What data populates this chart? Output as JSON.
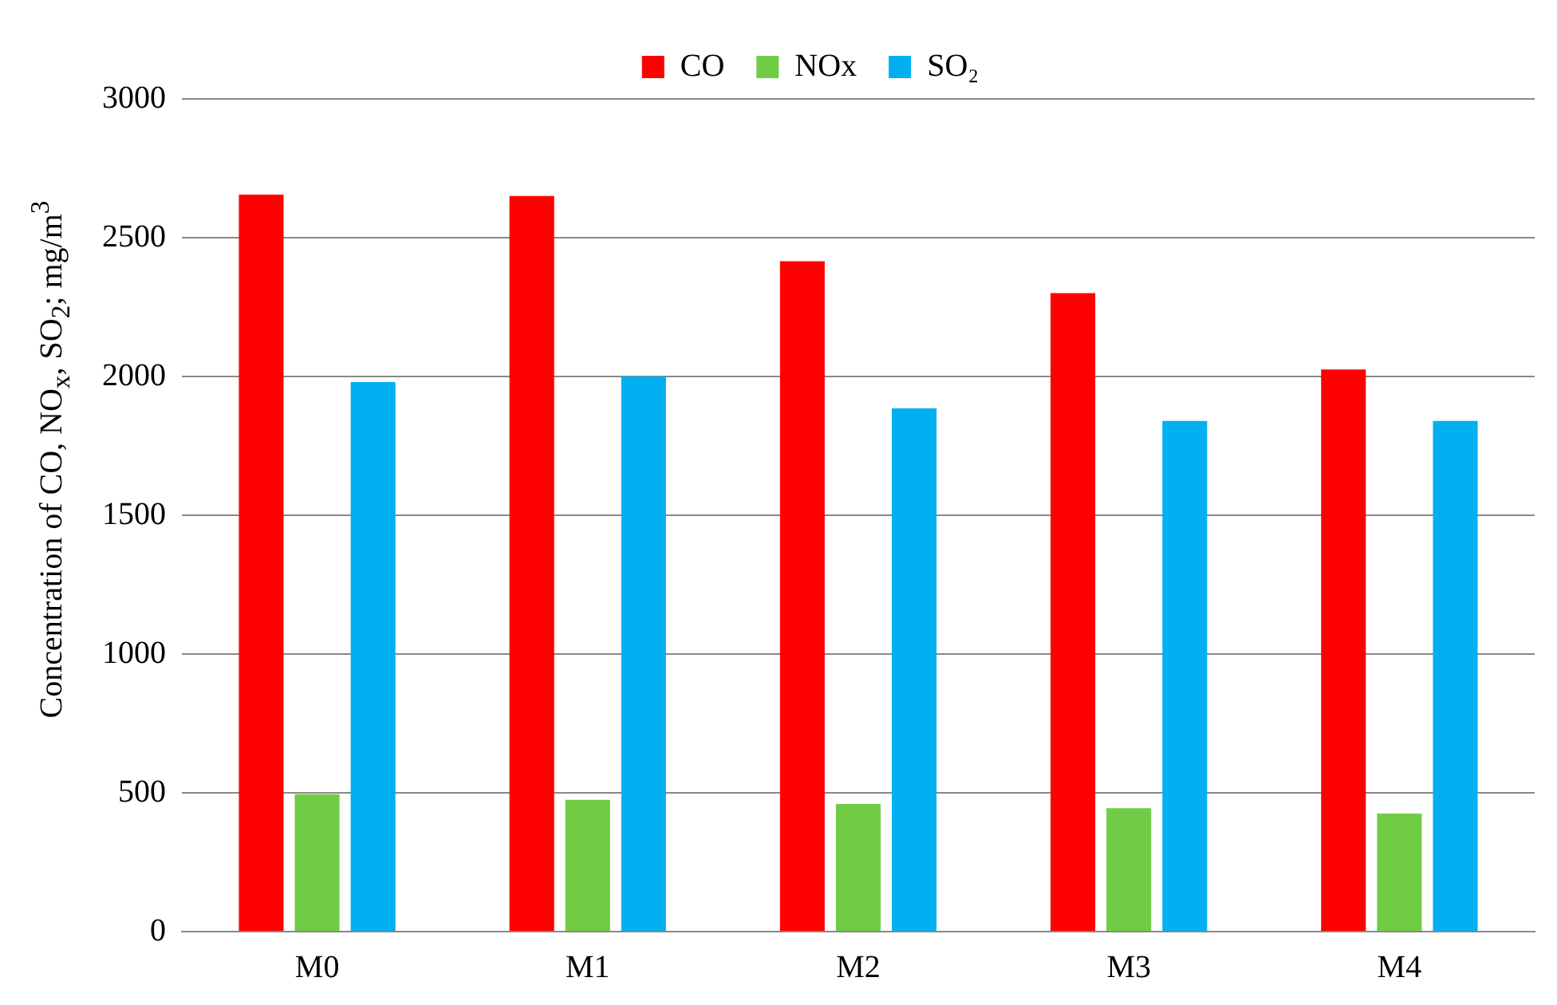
{
  "chart_data": {
    "type": "bar",
    "ylabel": "Concentration of  CO, NO$_{x}$, SO$_{2}$; mg/m$^{3}$",
    "categories": [
      "M0",
      "M1",
      "M2",
      "M3",
      "M4"
    ],
    "series": [
      {
        "name": "CO",
        "color": "#ff0000",
        "values": [
          2655,
          2650,
          2415,
          2300,
          2025
        ]
      },
      {
        "name": "NOx",
        "color": "#70cc44",
        "values": [
          495,
          475,
          460,
          445,
          425
        ]
      },
      {
        "name": "SO₂",
        "color": "#00b0f0",
        "values": [
          1980,
          2000,
          1885,
          1840,
          1840
        ]
      }
    ],
    "ylim": [
      0,
      3000
    ],
    "yticks": [
      0,
      500,
      1000,
      1500,
      2000,
      2500,
      3000
    ],
    "grid": "y",
    "legend": "top"
  }
}
